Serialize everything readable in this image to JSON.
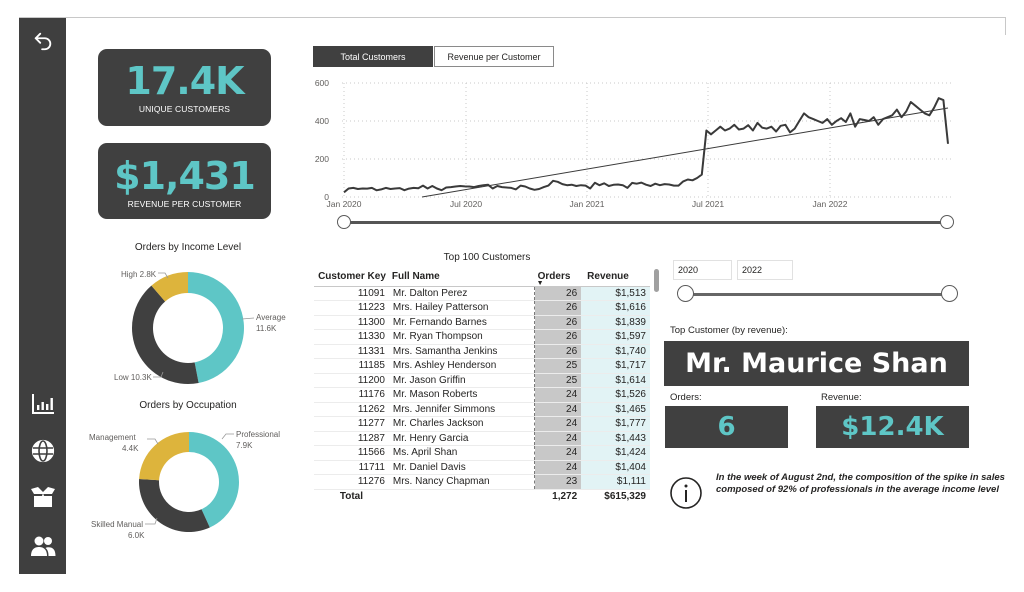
{
  "sidebar": {
    "back_icon": "back-arrow-icon",
    "items": [
      {
        "name": "analytics",
        "icon": "bar-chart-icon"
      },
      {
        "name": "geography",
        "icon": "globe-icon"
      },
      {
        "name": "products",
        "icon": "box-icon"
      },
      {
        "name": "customers",
        "icon": "people-icon"
      }
    ]
  },
  "kpis": {
    "unique_customers": {
      "value": "17.4K",
      "label": "UNIQUE CUSTOMERS"
    },
    "revenue_per_customer": {
      "value": "$1,431",
      "label": "REVENUE PER CUSTOMER"
    }
  },
  "line_chart": {
    "tabs": [
      {
        "label": "Total Customers",
        "active": true
      },
      {
        "label": "Revenue per Customer",
        "active": false
      }
    ],
    "y_ticks": [
      "600",
      "400",
      "200",
      "0"
    ],
    "x_ticks": [
      "Jan 2020",
      "Jul 2020",
      "Jan 2021",
      "Jul 2021",
      "Jan 2022"
    ]
  },
  "income_donut": {
    "title": "Orders by Income Level",
    "labels": {
      "high": "High 2.8K",
      "average_name": "Average",
      "average_value": "11.6K",
      "low": "Low 10.3K"
    }
  },
  "occupation_donut": {
    "title": "Orders by Occupation",
    "labels": {
      "management_name": "Management",
      "management_value": "4.4K",
      "professional_name": "Professional",
      "professional_value": "7.9K",
      "skilled_name": "Skilled Manual",
      "skilled_value": "6.0K"
    }
  },
  "top_table": {
    "title": "Top 100 Customers",
    "columns": [
      "Customer Key",
      "Full Name",
      "Orders",
      "Revenue"
    ],
    "sort_indicator": "▼",
    "rows": [
      {
        "key": "11091",
        "name": "Mr. Dalton Perez",
        "orders": "26",
        "revenue": "$1,513"
      },
      {
        "key": "11223",
        "name": "Mrs. Hailey Patterson",
        "orders": "26",
        "revenue": "$1,616"
      },
      {
        "key": "11300",
        "name": "Mr. Fernando Barnes",
        "orders": "26",
        "revenue": "$1,839"
      },
      {
        "key": "11330",
        "name": "Mr. Ryan Thompson",
        "orders": "26",
        "revenue": "$1,597"
      },
      {
        "key": "11331",
        "name": "Mrs. Samantha Jenkins",
        "orders": "26",
        "revenue": "$1,740"
      },
      {
        "key": "11185",
        "name": "Mrs. Ashley Henderson",
        "orders": "25",
        "revenue": "$1,717"
      },
      {
        "key": "11200",
        "name": "Mr. Jason Griffin",
        "orders": "25",
        "revenue": "$1,614"
      },
      {
        "key": "11176",
        "name": "Mr. Mason Roberts",
        "orders": "24",
        "revenue": "$1,526"
      },
      {
        "key": "11262",
        "name": "Mrs. Jennifer Simmons",
        "orders": "24",
        "revenue": "$1,465"
      },
      {
        "key": "11277",
        "name": "Mr. Charles Jackson",
        "orders": "24",
        "revenue": "$1,777"
      },
      {
        "key": "11287",
        "name": "Mr. Henry Garcia",
        "orders": "24",
        "revenue": "$1,443"
      },
      {
        "key": "11566",
        "name": "Ms. April Shan",
        "orders": "24",
        "revenue": "$1,424"
      },
      {
        "key": "11711",
        "name": "Mr. Daniel Davis",
        "orders": "24",
        "revenue": "$1,404"
      },
      {
        "key": "11276",
        "name": "Mrs. Nancy Chapman",
        "orders": "23",
        "revenue": "$1,111"
      }
    ],
    "total": {
      "label": "Total",
      "orders": "1,272",
      "revenue": "$615,329"
    }
  },
  "year_filter": {
    "start": "2020",
    "end": "2022"
  },
  "top_customer": {
    "label": "Top Customer (by revenue):",
    "name": "Mr. Maurice Shan",
    "orders_label": "Orders:",
    "orders_value": "6",
    "revenue_label": "Revenue:",
    "revenue_value": "$12.4K"
  },
  "insight": {
    "icon": "info-icon",
    "text": "In the week of August 2nd, the composition of the spike in sales composed of 92% of professionals in the average income level"
  },
  "colors": {
    "dark": "#404040",
    "teal": "#5ec6c6",
    "gold": "#ddb43c",
    "sidebar": "#3f3f3f"
  },
  "chart_data": [
    {
      "type": "line",
      "title": "Total Customers",
      "xlabel": "",
      "ylabel": "",
      "ylim": [
        0,
        600
      ],
      "x_ticks": [
        "Jan 2020",
        "Jul 2020",
        "Jan 2021",
        "Jul 2021",
        "Jan 2022"
      ],
      "grid": true,
      "series": [
        {
          "name": "Total Customers (weekly)",
          "x_range": [
            "Jan 2020",
            "Jul 2022"
          ],
          "values": [
            25,
            45,
            48,
            42,
            45,
            44,
            48,
            35,
            40,
            48,
            42,
            45,
            47,
            36,
            44,
            48,
            46,
            60,
            45,
            58,
            45,
            36,
            50,
            52,
            55,
            58,
            56,
            55,
            52,
            58,
            62,
            65,
            45,
            58,
            52,
            50,
            48,
            40,
            60,
            55,
            45,
            38,
            42,
            52,
            60,
            85,
            80,
            68,
            62,
            65,
            58,
            62,
            60,
            45,
            75,
            62,
            72,
            58,
            64,
            66,
            62,
            48,
            74,
            70,
            76,
            65,
            58,
            70,
            62,
            68,
            66,
            60,
            60,
            82,
            92,
            88,
            100,
            118,
            350,
            330,
            350,
            370,
            350,
            360,
            380,
            355,
            360,
            378,
            350,
            390,
            365,
            360,
            370,
            345,
            375,
            380,
            340,
            360,
            400,
            440,
            420,
            410,
            400,
            390,
            410,
            380,
            400,
            415,
            395,
            440,
            370,
            410,
            405,
            400,
            420,
            380,
            410,
            420,
            430,
            460,
            420,
            450,
            500,
            480,
            460,
            440,
            430,
            470,
            520,
            510,
            280
          ],
          "color": "#3a3a3a"
        },
        {
          "name": "Trend",
          "values_start_end": [
            0,
            465
          ],
          "x_start": "Apr 2020",
          "x_end": "Jul 2022",
          "color": "#3a3a3a"
        }
      ]
    },
    {
      "type": "pie",
      "title": "Orders by Income Level",
      "donut": true,
      "categories": [
        "Average",
        "Low",
        "High"
      ],
      "values": [
        11600,
        10300,
        2800
      ],
      "colors": [
        "#5ec6c6",
        "#404040",
        "#ddb43c"
      ]
    },
    {
      "type": "pie",
      "title": "Orders by Occupation",
      "donut": true,
      "categories": [
        "Professional",
        "Skilled Manual",
        "Management"
      ],
      "values": [
        7900,
        6000,
        4400
      ],
      "colors": [
        "#5ec6c6",
        "#404040",
        "#ddb43c"
      ]
    }
  ]
}
